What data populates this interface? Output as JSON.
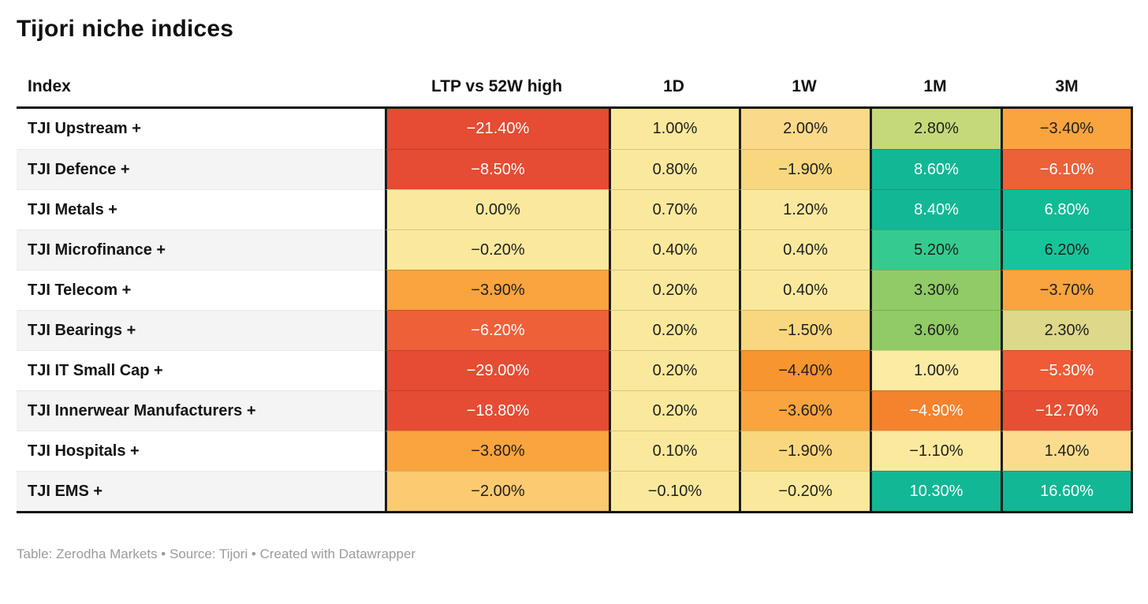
{
  "title": "Tijori niche indices",
  "footer": "Table: Zerodha Markets • Source: Tijori • Created with Datawrapper",
  "table": {
    "headers": [
      "Index",
      "LTP vs 52W high",
      "1D",
      "1W",
      "1M",
      "3M"
    ],
    "rows": [
      {
        "label": "TJI Upstream +",
        "values": [
          {
            "text": "−21.40%",
            "bg": "#e64b33",
            "fg": "#ffffff"
          },
          {
            "text": "1.00%",
            "bg": "#fae99c",
            "fg": "#1f1f1f"
          },
          {
            "text": "2.00%",
            "bg": "#fbd98a",
            "fg": "#1f1f1f"
          },
          {
            "text": "2.80%",
            "bg": "#c5d97a",
            "fg": "#1f1f1f"
          },
          {
            "text": "−3.40%",
            "bg": "#f9a43e",
            "fg": "#1f1f1f"
          }
        ]
      },
      {
        "label": "TJI Defence +",
        "values": [
          {
            "text": "−8.50%",
            "bg": "#e64b33",
            "fg": "#ffffff"
          },
          {
            "text": "0.80%",
            "bg": "#fae99c",
            "fg": "#1f1f1f"
          },
          {
            "text": "−1.90%",
            "bg": "#f9d77e",
            "fg": "#1f1f1f"
          },
          {
            "text": "8.60%",
            "bg": "#12b795",
            "fg": "#ffffff"
          },
          {
            "text": "−6.10%",
            "bg": "#ec6137",
            "fg": "#ffffff"
          }
        ]
      },
      {
        "label": "TJI Metals +",
        "values": [
          {
            "text": "0.00%",
            "bg": "#fae99c",
            "fg": "#1f1f1f"
          },
          {
            "text": "0.70%",
            "bg": "#fae99c",
            "fg": "#1f1f1f"
          },
          {
            "text": "1.20%",
            "bg": "#fae99c",
            "fg": "#1f1f1f"
          },
          {
            "text": "8.40%",
            "bg": "#12b795",
            "fg": "#ffffff"
          },
          {
            "text": "6.80%",
            "bg": "#11bb96",
            "fg": "#ffffff"
          }
        ]
      },
      {
        "label": "TJI Microfinance +",
        "values": [
          {
            "text": "−0.20%",
            "bg": "#fae99c",
            "fg": "#1f1f1f"
          },
          {
            "text": "0.40%",
            "bg": "#fae99c",
            "fg": "#1f1f1f"
          },
          {
            "text": "0.40%",
            "bg": "#fae99c",
            "fg": "#1f1f1f"
          },
          {
            "text": "5.20%",
            "bg": "#35cb8e",
            "fg": "#1f1f1f"
          },
          {
            "text": "6.20%",
            "bg": "#17c499",
            "fg": "#1f1f1f"
          }
        ]
      },
      {
        "label": "TJI Telecom +",
        "values": [
          {
            "text": "−3.90%",
            "bg": "#f9a43e",
            "fg": "#1f1f1f"
          },
          {
            "text": "0.20%",
            "bg": "#fae99c",
            "fg": "#1f1f1f"
          },
          {
            "text": "0.40%",
            "bg": "#fae99c",
            "fg": "#1f1f1f"
          },
          {
            "text": "3.30%",
            "bg": "#90cb66",
            "fg": "#1f1f1f"
          },
          {
            "text": "−3.70%",
            "bg": "#f9a43e",
            "fg": "#1f1f1f"
          }
        ]
      },
      {
        "label": "TJI Bearings +",
        "values": [
          {
            "text": "−6.20%",
            "bg": "#ed6038",
            "fg": "#ffffff"
          },
          {
            "text": "0.20%",
            "bg": "#fae99c",
            "fg": "#1f1f1f"
          },
          {
            "text": "−1.50%",
            "bg": "#f9d77e",
            "fg": "#1f1f1f"
          },
          {
            "text": "3.60%",
            "bg": "#90cb66",
            "fg": "#1f1f1f"
          },
          {
            "text": "2.30%",
            "bg": "#ded88a",
            "fg": "#1f1f1f"
          }
        ]
      },
      {
        "label": "TJI IT Small Cap +",
        "values": [
          {
            "text": "−29.00%",
            "bg": "#e64b33",
            "fg": "#ffffff"
          },
          {
            "text": "0.20%",
            "bg": "#fae99c",
            "fg": "#1f1f1f"
          },
          {
            "text": "−4.40%",
            "bg": "#f7952e",
            "fg": "#1f1f1f"
          },
          {
            "text": "1.00%",
            "bg": "#fbeba3",
            "fg": "#1f1f1f"
          },
          {
            "text": "−5.30%",
            "bg": "#ee5b36",
            "fg": "#ffffff"
          }
        ]
      },
      {
        "label": "TJI Innerwear Manufacturers +",
        "values": [
          {
            "text": "−18.80%",
            "bg": "#e64b33",
            "fg": "#ffffff"
          },
          {
            "text": "0.20%",
            "bg": "#fae99c",
            "fg": "#1f1f1f"
          },
          {
            "text": "−3.60%",
            "bg": "#f9a43e",
            "fg": "#1f1f1f"
          },
          {
            "text": "−4.90%",
            "bg": "#f5822c",
            "fg": "#ffffff"
          },
          {
            "text": "−12.70%",
            "bg": "#e64f33",
            "fg": "#ffffff"
          }
        ]
      },
      {
        "label": "TJI Hospitals +",
        "values": [
          {
            "text": "−3.80%",
            "bg": "#f9a43e",
            "fg": "#1f1f1f"
          },
          {
            "text": "0.10%",
            "bg": "#fae99c",
            "fg": "#1f1f1f"
          },
          {
            "text": "−1.90%",
            "bg": "#f9d77e",
            "fg": "#1f1f1f"
          },
          {
            "text": "−1.10%",
            "bg": "#fbea9e",
            "fg": "#1f1f1f"
          },
          {
            "text": "1.40%",
            "bg": "#fbdc8e",
            "fg": "#1f1f1f"
          }
        ]
      },
      {
        "label": "TJI EMS +",
        "values": [
          {
            "text": "−2.00%",
            "bg": "#fcca70",
            "fg": "#1f1f1f"
          },
          {
            "text": "−0.10%",
            "bg": "#fae99c",
            "fg": "#1f1f1f"
          },
          {
            "text": "−0.20%",
            "bg": "#fae99c",
            "fg": "#1f1f1f"
          },
          {
            "text": "10.30%",
            "bg": "#12b795",
            "fg": "#ffffff"
          },
          {
            "text": "16.60%",
            "bg": "#12b795",
            "fg": "#ffffff"
          }
        ]
      }
    ]
  },
  "chart_data": {
    "type": "table",
    "title": "Tijori niche indices",
    "columns": [
      "Index",
      "LTP vs 52W high",
      "1D",
      "1W",
      "1M",
      "3M"
    ],
    "unit": "%",
    "heatmap": true,
    "palette": "red-yellow-green diverging heatmap",
    "rows": [
      [
        "TJI Upstream +",
        -21.4,
        1.0,
        2.0,
        2.8,
        -3.4
      ],
      [
        "TJI Defence +",
        -8.5,
        0.8,
        -1.9,
        8.6,
        -6.1
      ],
      [
        "TJI Metals +",
        0.0,
        0.7,
        1.2,
        8.4,
        6.8
      ],
      [
        "TJI Microfinance +",
        -0.2,
        0.4,
        0.4,
        5.2,
        6.2
      ],
      [
        "TJI Telecom +",
        -3.9,
        0.2,
        0.4,
        3.3,
        -3.7
      ],
      [
        "TJI Bearings +",
        -6.2,
        0.2,
        -1.5,
        3.6,
        2.3
      ],
      [
        "TJI IT Small Cap +",
        -29.0,
        0.2,
        -4.4,
        1.0,
        -5.3
      ],
      [
        "TJI Innerwear Manufacturers +",
        -18.8,
        0.2,
        -3.6,
        -4.9,
        -12.7
      ],
      [
        "TJI Hospitals +",
        -3.8,
        0.1,
        -1.9,
        -1.1,
        1.4
      ],
      [
        "TJI EMS +",
        -2.0,
        -0.1,
        -0.2,
        10.3,
        16.6
      ]
    ]
  },
  "colors": {
    "strong_negative": "#e64b33",
    "negative": "#f9a43e",
    "neutral": "#fae99c",
    "positive": "#90cb66",
    "strong_positive": "#12b795",
    "border": "#1c1c1c",
    "alt_row": "#f4f4f4",
    "footer_text": "#9b9b9b"
  }
}
